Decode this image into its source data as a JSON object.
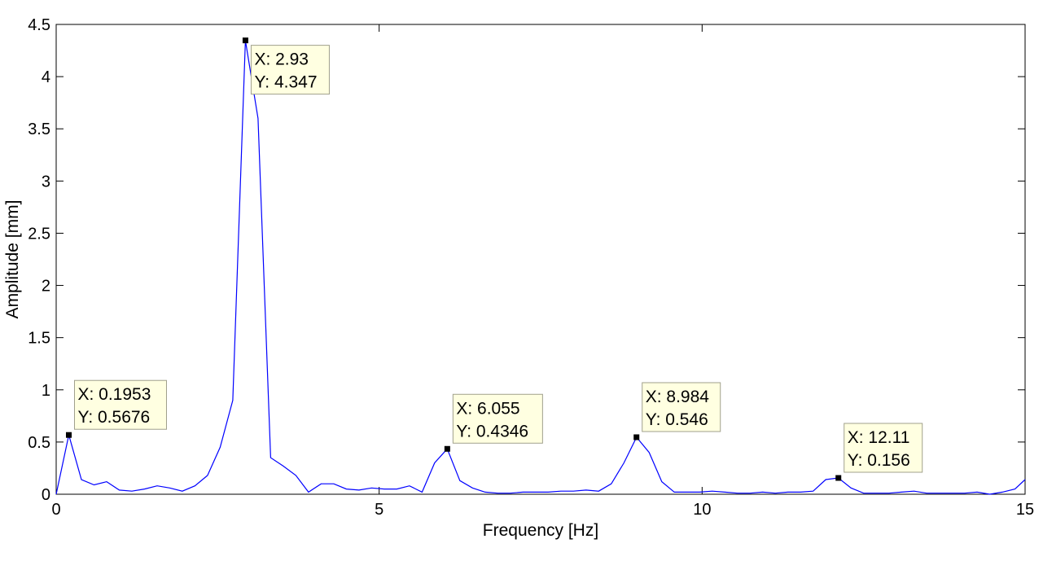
{
  "chart_data": {
    "type": "line",
    "title": "",
    "xlabel": "Frequency [Hz]",
    "ylabel": "Amplitude [mm]",
    "xlim": [
      0,
      15
    ],
    "ylim": [
      0,
      4.5
    ],
    "xticks": [
      0,
      5,
      10,
      15
    ],
    "xtick_labels": [
      "0",
      "5",
      "10",
      "15"
    ],
    "yticks": [
      0,
      0.5,
      1,
      1.5,
      2,
      2.5,
      3,
      3.5,
      4,
      4.5
    ],
    "ytick_labels": [
      "0",
      "0.5",
      "1",
      "1.5",
      "2",
      "2.5",
      "3",
      "3.5",
      "4",
      "4.5"
    ],
    "grid": false,
    "colors": {
      "line": "#0000ff",
      "datatip_bg": "#ffffe1",
      "datatip_border": "#a0a08c",
      "marker": "#000000"
    },
    "series": [
      {
        "x": [
          0,
          0.1953,
          0.3906,
          0.5859,
          0.7813,
          0.9766,
          1.1719,
          1.3672,
          1.5625,
          1.7578,
          1.9531,
          2.1484,
          2.3438,
          2.5391,
          2.7344,
          2.9297,
          3.125,
          3.3203,
          3.5156,
          3.7109,
          3.9063,
          4.1016,
          4.2969,
          4.4922,
          4.6875,
          4.8828,
          5.0781,
          5.2734,
          5.4688,
          5.6641,
          5.8594,
          6.0547,
          6.25,
          6.4453,
          6.6406,
          6.8359,
          7.0313,
          7.2266,
          7.4219,
          7.6172,
          7.8125,
          8.0078,
          8.2031,
          8.3984,
          8.5938,
          8.7891,
          8.9844,
          9.1797,
          9.375,
          9.5703,
          9.7656,
          9.9609,
          10.1563,
          10.3516,
          10.5469,
          10.7422,
          10.9375,
          11.1328,
          11.3281,
          11.5234,
          11.7188,
          11.9141,
          12.1094,
          12.3047,
          12.5,
          12.6953,
          12.8906,
          13.0859,
          13.2813,
          13.4766,
          13.6719,
          13.8672,
          14.0625,
          14.2578,
          14.4531,
          14.6484,
          14.8438,
          15.0
        ],
        "y": [
          0.0,
          0.5676,
          0.14,
          0.09,
          0.12,
          0.04,
          0.03,
          0.05,
          0.08,
          0.06,
          0.03,
          0.08,
          0.18,
          0.45,
          0.9,
          4.347,
          3.6,
          0.35,
          0.27,
          0.18,
          0.02,
          0.1,
          0.1,
          0.05,
          0.04,
          0.06,
          0.05,
          0.05,
          0.08,
          0.02,
          0.3,
          0.4346,
          0.13,
          0.06,
          0.02,
          0.01,
          0.01,
          0.02,
          0.02,
          0.02,
          0.03,
          0.03,
          0.04,
          0.03,
          0.1,
          0.3,
          0.546,
          0.4,
          0.12,
          0.02,
          0.02,
          0.02,
          0.03,
          0.02,
          0.01,
          0.01,
          0.02,
          0.01,
          0.02,
          0.02,
          0.03,
          0.14,
          0.156,
          0.06,
          0.01,
          0.01,
          0.01,
          0.02,
          0.03,
          0.01,
          0.01,
          0.01,
          0.01,
          0.02,
          0.0,
          0.02,
          0.05,
          0.14
        ]
      }
    ],
    "datatips": [
      {
        "x": 0.1953,
        "y": 0.5676,
        "label_x": "X: 0.1953",
        "label_y": "Y: 0.5676"
      },
      {
        "x": 2.93,
        "y": 4.347,
        "label_x": "X: 2.93",
        "label_y": "Y: 4.347"
      },
      {
        "x": 6.055,
        "y": 0.4346,
        "label_x": "X: 6.055",
        "label_y": "Y: 0.4346"
      },
      {
        "x": 8.984,
        "y": 0.546,
        "label_x": "X: 8.984",
        "label_y": "Y: 0.546"
      },
      {
        "x": 12.11,
        "y": 0.156,
        "label_x": "X: 12.11",
        "label_y": "Y: 0.156"
      }
    ]
  }
}
